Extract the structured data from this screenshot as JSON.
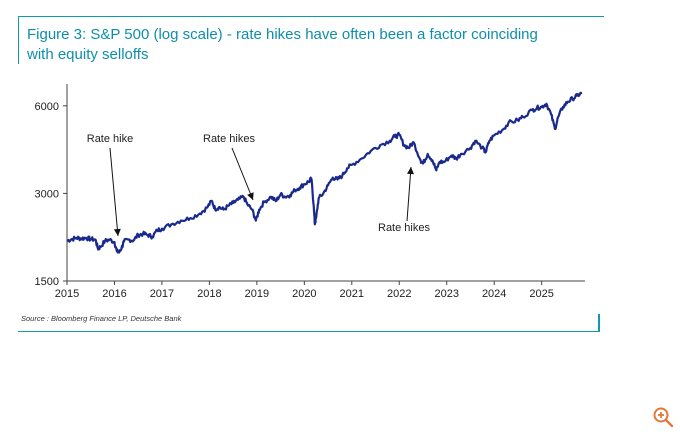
{
  "figure": {
    "title_line1": "Figure 3: S&P 500 (log scale) - rate hikes have often been a factor coinciding",
    "title_line2": "with equity selloffs",
    "source": "Source : Bloomberg Finance LP, Deutsche Bank"
  },
  "chart_data": {
    "type": "line",
    "title": "",
    "xlabel": "",
    "ylabel": "",
    "y_scale": "log",
    "ylim": [
      1500,
      6800
    ],
    "xlim": [
      2015,
      2025.85
    ],
    "y_ticks": [
      "1500",
      "3000",
      "6000"
    ],
    "y_tick_values": [
      1500,
      3000,
      6000
    ],
    "x_ticks": [
      "2015",
      "2016",
      "2017",
      "2018",
      "2019",
      "2020",
      "2021",
      "2022",
      "2023",
      "2024",
      "2025"
    ],
    "x_tick_values": [
      2015,
      2016,
      2017,
      2018,
      2019,
      2020,
      2021,
      2022,
      2023,
      2024,
      2025
    ],
    "grid": false,
    "series_color": "#1a2a8c",
    "series": [
      {
        "name": "",
        "x": [
          2015.0,
          2015.1,
          2015.2,
          2015.3,
          2015.4,
          2015.5,
          2015.6,
          2015.65,
          2015.7,
          2015.8,
          2015.9,
          2016.0,
          2016.05,
          2016.1,
          2016.15,
          2016.2,
          2016.3,
          2016.4,
          2016.5,
          2016.6,
          2016.7,
          2016.8,
          2016.9,
          2017.0,
          2017.2,
          2017.4,
          2017.6,
          2017.8,
          2017.95,
          2018.05,
          2018.12,
          2018.2,
          2018.3,
          2018.4,
          2018.5,
          2018.6,
          2018.72,
          2018.8,
          2018.9,
          2018.98,
          2019.05,
          2019.15,
          2019.3,
          2019.4,
          2019.5,
          2019.6,
          2019.7,
          2019.8,
          2019.9,
          2020.0,
          2020.1,
          2020.15,
          2020.2,
          2020.22,
          2020.25,
          2020.3,
          2020.4,
          2020.5,
          2020.6,
          2020.7,
          2020.8,
          2020.9,
          2021.0,
          2021.2,
          2021.4,
          2021.6,
          2021.8,
          2021.9,
          2022.0,
          2022.1,
          2022.2,
          2022.3,
          2022.45,
          2022.5,
          2022.6,
          2022.7,
          2022.78,
          2022.85,
          2022.95,
          2023.1,
          2023.2,
          2023.3,
          2023.5,
          2023.6,
          2023.75,
          2023.82,
          2023.9,
          2024.0,
          2024.2,
          2024.3,
          2024.5,
          2024.6,
          2024.8,
          2024.9,
          2025.0,
          2025.1,
          2025.2,
          2025.28,
          2025.35,
          2025.45,
          2025.55,
          2025.65,
          2025.75,
          2025.85
        ],
        "y": [
          2060,
          2090,
          2110,
          2100,
          2110,
          2090,
          2080,
          1940,
          1960,
          2060,
          2080,
          2040,
          1900,
          1880,
          1950,
          2050,
          2080,
          2070,
          2160,
          2180,
          2160,
          2130,
          2240,
          2270,
          2350,
          2420,
          2470,
          2560,
          2680,
          2830,
          2650,
          2690,
          2640,
          2720,
          2780,
          2850,
          2920,
          2750,
          2640,
          2420,
          2640,
          2800,
          2920,
          2820,
          2980,
          2920,
          2960,
          3080,
          3140,
          3230,
          3300,
          3370,
          2700,
          2350,
          2480,
          2880,
          3000,
          3200,
          3400,
          3350,
          3450,
          3660,
          3760,
          3950,
          4200,
          4400,
          4550,
          4700,
          4770,
          4400,
          4300,
          4500,
          3900,
          3800,
          4100,
          3900,
          3600,
          3850,
          3850,
          4050,
          3950,
          4100,
          4300,
          4550,
          4300,
          4150,
          4550,
          4750,
          5000,
          5250,
          5350,
          5500,
          5800,
          5900,
          5950,
          6100,
          5600,
          5000,
          5500,
          5950,
          6200,
          6350,
          6500,
          6650
        ]
      }
    ],
    "annotations": [
      {
        "text": "Rate hike",
        "x": 2016.0,
        "y": 1950
      },
      {
        "text": "Rate hikes",
        "x": 2018.9,
        "y": 2800
      },
      {
        "text": "Rate hikes",
        "x": 2022.25,
        "y": 4100
      }
    ]
  },
  "ui": {
    "zoom_icon": "zoom-in-icon",
    "zoom_color": "#e07a3a"
  }
}
